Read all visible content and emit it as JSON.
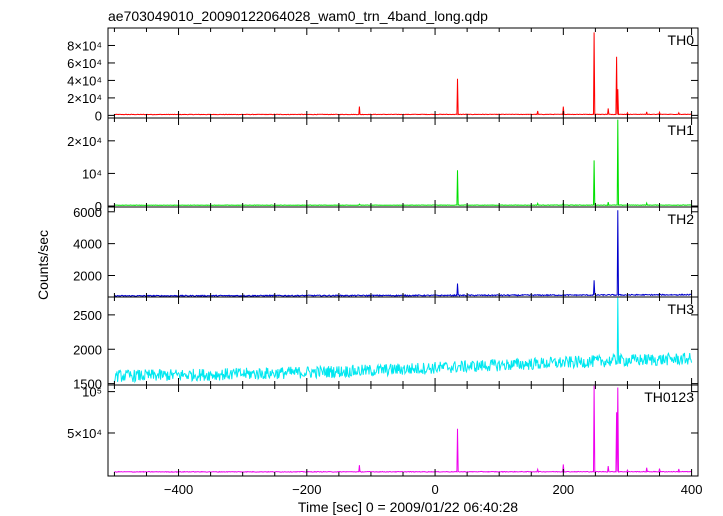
{
  "title": "ae703049010_20090122064028_wam0_trn_4band_long.qdp",
  "ylabel": "Counts/sec",
  "xlabel": "Time [sec] 0 = 2009/01/22 06:40:28",
  "chart_data": [
    {
      "type": "line",
      "name": "TH0",
      "color": "#ff0000",
      "xlim": [
        -510,
        410
      ],
      "ylim": [
        -3000,
        100000
      ],
      "ticks": [
        {
          "v": 0,
          "t": "0"
        },
        {
          "v": 20000,
          "t": "2×10⁴"
        },
        {
          "v": 40000,
          "t": "4×10⁴"
        },
        {
          "v": 60000,
          "t": "6×10⁴"
        },
        {
          "v": 80000,
          "t": "8×10⁴"
        }
      ],
      "baseline": [
        [
          -500,
          1000
        ],
        [
          -200,
          1050
        ],
        [
          0,
          1100
        ],
        [
          200,
          1150
        ],
        [
          400,
          1200
        ]
      ],
      "noise": 250,
      "spikes": [
        [
          -118,
          10000
        ],
        [
          35,
          42000
        ],
        [
          160,
          5000
        ],
        [
          200,
          10000
        ],
        [
          248,
          95000
        ],
        [
          270,
          8000
        ],
        [
          283,
          67000
        ],
        [
          285,
          30000
        ],
        [
          300,
          3000
        ],
        [
          330,
          4000
        ],
        [
          350,
          3500
        ],
        [
          380,
          3000
        ]
      ]
    },
    {
      "type": "line",
      "name": "TH1",
      "color": "#00e000",
      "xlim": [
        -510,
        410
      ],
      "ylim": [
        -300,
        27000
      ],
      "ticks": [
        {
          "v": 0,
          "t": "0"
        },
        {
          "v": 10000,
          "t": "10⁴"
        },
        {
          "v": 20000,
          "t": "2×10⁴"
        }
      ],
      "baseline": [
        [
          -500,
          250
        ],
        [
          0,
          270
        ],
        [
          400,
          290
        ]
      ],
      "noise": 60,
      "spikes": [
        [
          -118,
          600
        ],
        [
          35,
          11000
        ],
        [
          160,
          800
        ],
        [
          200,
          900
        ],
        [
          248,
          14000
        ],
        [
          270,
          1200
        ],
        [
          285,
          26500
        ],
        [
          330,
          900
        ]
      ]
    },
    {
      "type": "line",
      "name": "TH2",
      "color": "#0000cc",
      "xlim": [
        -510,
        410
      ],
      "ylim": [
        650,
        6300
      ],
      "ticks": [
        {
          "v": 2000,
          "t": "2000"
        },
        {
          "v": 4000,
          "t": "4000"
        },
        {
          "v": 6000,
          "t": "6000"
        }
      ],
      "baseline": [
        [
          -500,
          720
        ],
        [
          0,
          750
        ],
        [
          400,
          790
        ]
      ],
      "noise": 35,
      "spikes": [
        [
          35,
          1500
        ],
        [
          248,
          1700
        ],
        [
          285,
          6100
        ]
      ]
    },
    {
      "type": "line",
      "name": "TH3",
      "color": "#00e8f0",
      "xlim": [
        -510,
        410
      ],
      "ylim": [
        1480,
        2760
      ],
      "ticks": [
        {
          "v": 1500,
          "t": "1500"
        },
        {
          "v": 2000,
          "t": "2000"
        },
        {
          "v": 2500,
          "t": "2500"
        }
      ],
      "baseline": [
        [
          -500,
          1610
        ],
        [
          -300,
          1640
        ],
        [
          -100,
          1690
        ],
        [
          100,
          1770
        ],
        [
          300,
          1840
        ],
        [
          400,
          1860
        ]
      ],
      "noise": 90,
      "spikes": [
        [
          285,
          2750
        ]
      ]
    },
    {
      "type": "line",
      "name": "TH0123",
      "color": "#ee00ee",
      "xlim": [
        -510,
        410
      ],
      "ylim": [
        -2000,
        108000
      ],
      "ticks": [
        {
          "v": 50000,
          "t": "5×10⁴"
        },
        {
          "v": 100000,
          "t": "10⁵"
        }
      ],
      "baseline": [
        [
          -500,
          3000
        ],
        [
          0,
          3100
        ],
        [
          400,
          3200
        ]
      ],
      "noise": 400,
      "spikes": [
        [
          -118,
          11000
        ],
        [
          35,
          55000
        ],
        [
          160,
          6000
        ],
        [
          200,
          12000
        ],
        [
          248,
          107000
        ],
        [
          270,
          10000
        ],
        [
          283,
          75000
        ],
        [
          285,
          105000
        ],
        [
          300,
          5000
        ],
        [
          330,
          8000
        ],
        [
          350,
          7000
        ],
        [
          380,
          6500
        ]
      ]
    }
  ],
  "xticks": [
    {
      "v": -400,
      "t": "−400"
    },
    {
      "v": -200,
      "t": "−200"
    },
    {
      "v": 0,
      "t": "0"
    },
    {
      "v": 200,
      "t": "200"
    },
    {
      "v": 400,
      "t": "400"
    }
  ]
}
